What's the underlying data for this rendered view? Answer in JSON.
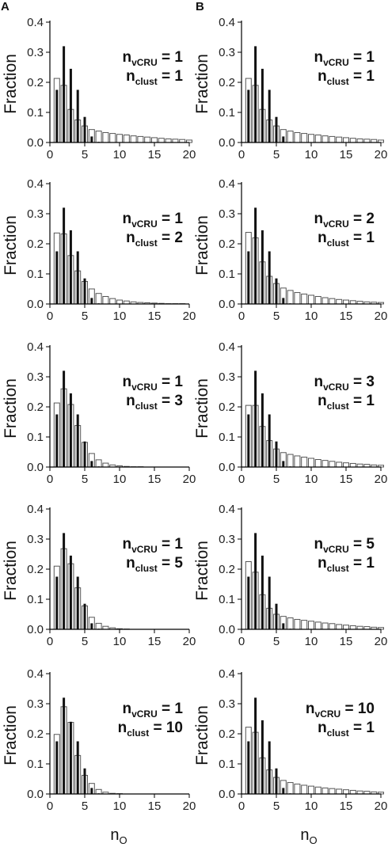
{
  "chart_data": {
    "type": "bar",
    "panel_labels": [
      "A",
      "B"
    ],
    "ylabel": "Fraction",
    "xlabel": {
      "main": "n",
      "sub": "O"
    },
    "xlim": [
      0,
      20
    ],
    "ylim": [
      0,
      0.4
    ],
    "xticks": [
      0,
      5,
      10,
      15,
      20
    ],
    "yticks": [
      "0.0",
      "0.1",
      "0.2",
      "0.3",
      "0.4"
    ],
    "grid": false,
    "colors": {
      "filled_bars": "#111111",
      "open_bars": "#ffffff",
      "open_outline": "#555555"
    },
    "annotation_parts": {
      "n": "n",
      "vcru": "vCRU",
      "clust": "clust",
      "eq": " = "
    },
    "panels": [
      {
        "column": "A",
        "row": 1,
        "n_vCRU": "1",
        "n_clust": "1",
        "open": [
          0.213,
          0.19,
          0.11,
          0.075,
          0.055,
          0.043,
          0.038,
          0.033,
          0.03,
          0.027,
          0.025,
          0.022,
          0.02,
          0.018,
          0.016,
          0.014,
          0.012,
          0.011,
          0.01,
          0.008
        ],
        "filled": [
          0.175,
          0.32,
          0.245,
          0.175,
          0.085,
          0.02,
          0.002
        ]
      },
      {
        "column": "B",
        "row": 1,
        "n_vCRU": "1",
        "n_clust": "1",
        "open": [
          0.213,
          0.19,
          0.11,
          0.075,
          0.055,
          0.043,
          0.038,
          0.033,
          0.03,
          0.027,
          0.025,
          0.022,
          0.02,
          0.018,
          0.016,
          0.014,
          0.012,
          0.011,
          0.01,
          0.008
        ],
        "filled": [
          0.175,
          0.32,
          0.245,
          0.175,
          0.085,
          0.02,
          0.002
        ]
      },
      {
        "column": "A",
        "row": 2,
        "n_vCRU": "1",
        "n_clust": "2",
        "open": [
          0.236,
          0.233,
          0.161,
          0.11,
          0.075,
          0.05,
          0.035,
          0.025,
          0.018,
          0.013,
          0.01,
          0.007,
          0.005,
          0.004,
          0.003,
          0.002,
          0.001,
          0.001,
          0.001,
          0.0
        ],
        "filled": [
          0.175,
          0.32,
          0.245,
          0.175,
          0.085,
          0.02,
          0.002
        ]
      },
      {
        "column": "B",
        "row": 2,
        "n_vCRU": "2",
        "n_clust": "1",
        "open": [
          0.238,
          0.22,
          0.14,
          0.092,
          0.068,
          0.053,
          0.045,
          0.038,
          0.033,
          0.029,
          0.025,
          0.021,
          0.018,
          0.015,
          0.013,
          0.011,
          0.009,
          0.007,
          0.006,
          0.005
        ],
        "filled": [
          0.175,
          0.32,
          0.245,
          0.175,
          0.085,
          0.02,
          0.002
        ]
      },
      {
        "column": "A",
        "row": 3,
        "n_vCRU": "1",
        "n_clust": "3",
        "open": [
          0.213,
          0.26,
          0.208,
          0.138,
          0.082,
          0.045,
          0.024,
          0.013,
          0.007,
          0.004,
          0.002,
          0.001,
          0.001,
          0.0,
          0.0,
          0.0,
          0.0,
          0.0,
          0.0,
          0.0
        ],
        "filled": [
          0.175,
          0.32,
          0.245,
          0.175,
          0.085,
          0.02,
          0.002
        ]
      },
      {
        "column": "B",
        "row": 3,
        "n_vCRU": "3",
        "n_clust": "1",
        "open": [
          0.205,
          0.205,
          0.135,
          0.088,
          0.06,
          0.048,
          0.042,
          0.037,
          0.033,
          0.029,
          0.025,
          0.022,
          0.019,
          0.016,
          0.014,
          0.012,
          0.01,
          0.009,
          0.007,
          0.006
        ],
        "filled": [
          0.175,
          0.32,
          0.245,
          0.175,
          0.085,
          0.02,
          0.002
        ]
      },
      {
        "column": "A",
        "row": 4,
        "n_vCRU": "1",
        "n_clust": "5",
        "open": [
          0.21,
          0.268,
          0.218,
          0.138,
          0.078,
          0.04,
          0.02,
          0.01,
          0.005,
          0.002,
          0.001,
          0.0,
          0.0,
          0.0,
          0.0,
          0.0,
          0.0,
          0.0,
          0.0,
          0.0
        ],
        "filled": [
          0.175,
          0.32,
          0.245,
          0.175,
          0.085,
          0.02,
          0.002
        ]
      },
      {
        "column": "B",
        "row": 4,
        "n_vCRU": "5",
        "n_clust": "1",
        "open": [
          0.225,
          0.19,
          0.115,
          0.07,
          0.05,
          0.043,
          0.038,
          0.033,
          0.03,
          0.027,
          0.024,
          0.021,
          0.019,
          0.016,
          0.014,
          0.012,
          0.01,
          0.009,
          0.007,
          0.006
        ],
        "filled": [
          0.175,
          0.32,
          0.245,
          0.175,
          0.085,
          0.02,
          0.002
        ]
      },
      {
        "column": "A",
        "row": 5,
        "n_vCRU": "1",
        "n_clust": "10",
        "open": [
          0.198,
          0.29,
          0.238,
          0.128,
          0.062,
          0.035,
          0.015,
          0.006,
          0.002,
          0.001,
          0.0,
          0.0,
          0.0,
          0.0,
          0.0,
          0.0,
          0.0,
          0.0,
          0.0,
          0.0
        ],
        "filled": [
          0.175,
          0.32,
          0.24,
          0.175,
          0.085,
          0.02,
          0.002
        ]
      },
      {
        "column": "B",
        "row": 5,
        "n_vCRU": "10",
        "n_clust": "1",
        "open": [
          0.222,
          0.205,
          0.12,
          0.08,
          0.055,
          0.045,
          0.038,
          0.033,
          0.029,
          0.026,
          0.023,
          0.02,
          0.018,
          0.016,
          0.014,
          0.012,
          0.01,
          0.009,
          0.007,
          0.006
        ],
        "filled": [
          0.175,
          0.32,
          0.245,
          0.175,
          0.085,
          0.02,
          0.002
        ]
      }
    ]
  }
}
